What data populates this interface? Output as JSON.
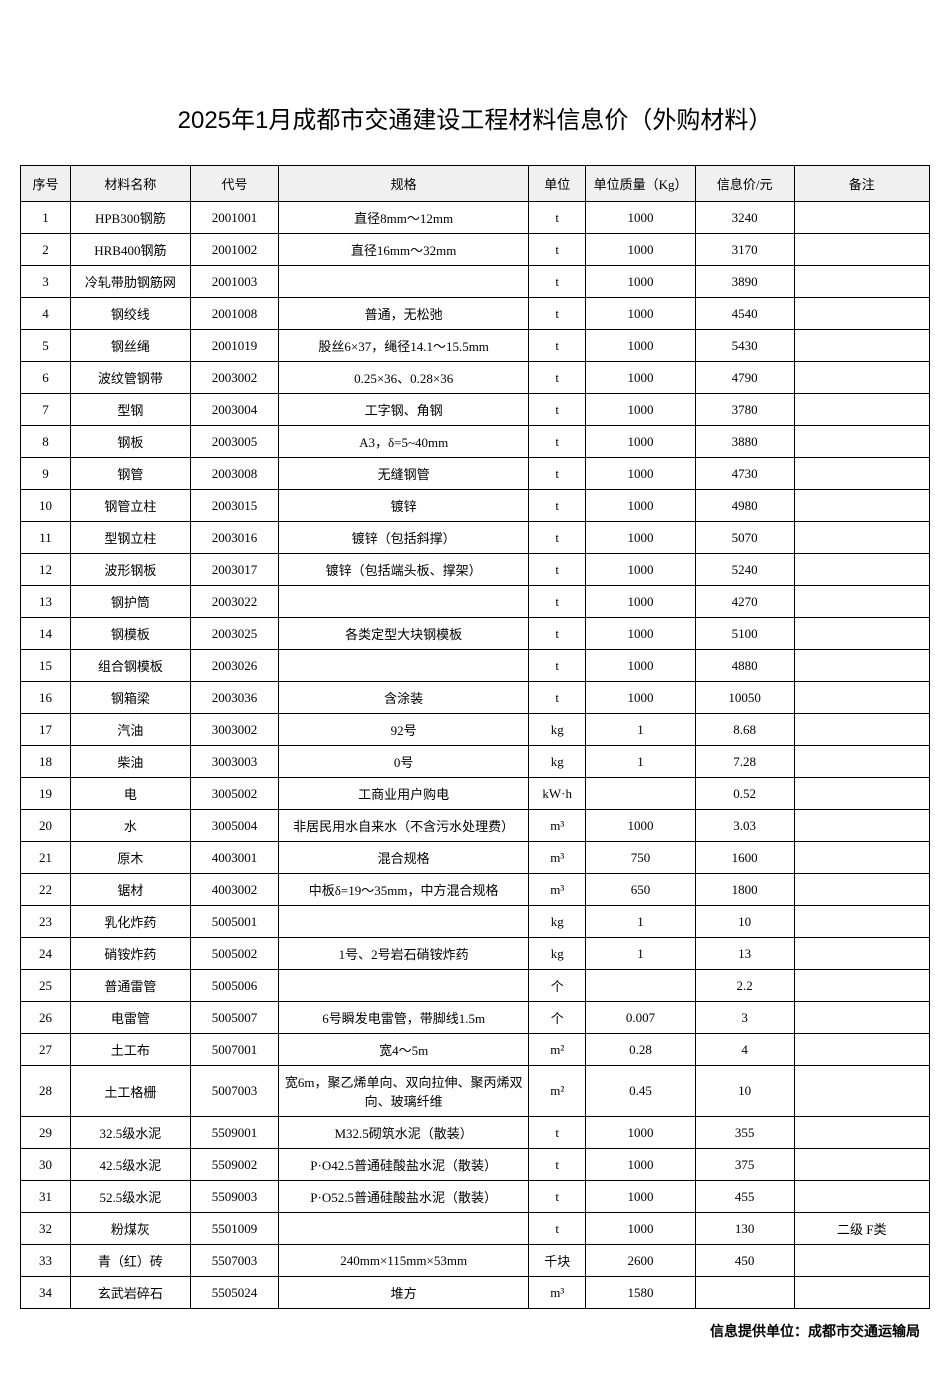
{
  "title": "2025年1月成都市交通建设工程材料信息价（外购材料）",
  "headers": {
    "seq": "序号",
    "name": "材料名称",
    "code": "代号",
    "spec": "规格",
    "unit": "单位",
    "mass": "单位质量（Kg）",
    "price": "信息价/元",
    "remark": "备注"
  },
  "rows": [
    {
      "seq": "1",
      "name": "HPB300钢筋",
      "code": "2001001",
      "spec": "直径8mm～12mm",
      "unit": "t",
      "mass": "1000",
      "price": "3240",
      "remark": ""
    },
    {
      "seq": "2",
      "name": "HRB400钢筋",
      "code": "2001002",
      "spec": "直径16mm～32mm",
      "unit": "t",
      "mass": "1000",
      "price": "3170",
      "remark": ""
    },
    {
      "seq": "3",
      "name": "冷轧带肋钢筋网",
      "code": "2001003",
      "spec": "",
      "unit": "t",
      "mass": "1000",
      "price": "3890",
      "remark": ""
    },
    {
      "seq": "4",
      "name": "钢绞线",
      "code": "2001008",
      "spec": "普通，无松弛",
      "unit": "t",
      "mass": "1000",
      "price": "4540",
      "remark": ""
    },
    {
      "seq": "5",
      "name": "钢丝绳",
      "code": "2001019",
      "spec": "股丝6×37，绳径14.1～15.5mm",
      "unit": "t",
      "mass": "1000",
      "price": "5430",
      "remark": ""
    },
    {
      "seq": "6",
      "name": "波纹管钢带",
      "code": "2003002",
      "spec": "0.25×36、0.28×36",
      "unit": "t",
      "mass": "1000",
      "price": "4790",
      "remark": ""
    },
    {
      "seq": "7",
      "name": "型钢",
      "code": "2003004",
      "spec": "工字钢、角钢",
      "unit": "t",
      "mass": "1000",
      "price": "3780",
      "remark": ""
    },
    {
      "seq": "8",
      "name": "钢板",
      "code": "2003005",
      "spec": "A3，δ=5~40mm",
      "unit": "t",
      "mass": "1000",
      "price": "3880",
      "remark": ""
    },
    {
      "seq": "9",
      "name": "钢管",
      "code": "2003008",
      "spec": "无缝钢管",
      "unit": "t",
      "mass": "1000",
      "price": "4730",
      "remark": ""
    },
    {
      "seq": "10",
      "name": "钢管立柱",
      "code": "2003015",
      "spec": "镀锌",
      "unit": "t",
      "mass": "1000",
      "price": "4980",
      "remark": ""
    },
    {
      "seq": "11",
      "name": "型钢立柱",
      "code": "2003016",
      "spec": "镀锌（包括斜撑）",
      "unit": "t",
      "mass": "1000",
      "price": "5070",
      "remark": ""
    },
    {
      "seq": "12",
      "name": "波形钢板",
      "code": "2003017",
      "spec": "镀锌（包括端头板、撑架）",
      "unit": "t",
      "mass": "1000",
      "price": "5240",
      "remark": ""
    },
    {
      "seq": "13",
      "name": "钢护筒",
      "code": "2003022",
      "spec": "",
      "unit": "t",
      "mass": "1000",
      "price": "4270",
      "remark": ""
    },
    {
      "seq": "14",
      "name": "钢模板",
      "code": "2003025",
      "spec": "各类定型大块钢模板",
      "unit": "t",
      "mass": "1000",
      "price": "5100",
      "remark": ""
    },
    {
      "seq": "15",
      "name": "组合钢模板",
      "code": "2003026",
      "spec": "",
      "unit": "t",
      "mass": "1000",
      "price": "4880",
      "remark": ""
    },
    {
      "seq": "16",
      "name": "钢箱梁",
      "code": "2003036",
      "spec": "含涂装",
      "unit": "t",
      "mass": "1000",
      "price": "10050",
      "remark": ""
    },
    {
      "seq": "17",
      "name": "汽油",
      "code": "3003002",
      "spec": "92号",
      "unit": "kg",
      "mass": "1",
      "price": "8.68",
      "remark": ""
    },
    {
      "seq": "18",
      "name": "柴油",
      "code": "3003003",
      "spec": "0号",
      "unit": "kg",
      "mass": "1",
      "price": "7.28",
      "remark": ""
    },
    {
      "seq": "19",
      "name": "电",
      "code": "3005002",
      "spec": "工商业用户购电",
      "unit": "kW·h",
      "mass": "",
      "price": "0.52",
      "remark": ""
    },
    {
      "seq": "20",
      "name": "水",
      "code": "3005004",
      "spec": "非居民用水自来水（不含污水处理费）",
      "unit": "m³",
      "mass": "1000",
      "price": "3.03",
      "remark": ""
    },
    {
      "seq": "21",
      "name": "原木",
      "code": "4003001",
      "spec": "混合规格",
      "unit": "m³",
      "mass": "750",
      "price": "1600",
      "remark": ""
    },
    {
      "seq": "22",
      "name": "锯材",
      "code": "4003002",
      "spec": "中板δ=19～35mm，中方混合规格",
      "unit": "m³",
      "mass": "650",
      "price": "1800",
      "remark": ""
    },
    {
      "seq": "23",
      "name": "乳化炸药",
      "code": "5005001",
      "spec": "",
      "unit": "kg",
      "mass": "1",
      "price": "10",
      "remark": ""
    },
    {
      "seq": "24",
      "name": "硝铵炸药",
      "code": "5005002",
      "spec": "1号、2号岩石硝铵炸药",
      "unit": "kg",
      "mass": "1",
      "price": "13",
      "remark": ""
    },
    {
      "seq": "25",
      "name": "普通雷管",
      "code": "5005006",
      "spec": "",
      "unit": "个",
      "mass": "",
      "price": "2.2",
      "remark": ""
    },
    {
      "seq": "26",
      "name": "电雷管",
      "code": "5005007",
      "spec": "6号瞬发电雷管，带脚线1.5m",
      "unit": "个",
      "mass": "0.007",
      "price": "3",
      "remark": ""
    },
    {
      "seq": "27",
      "name": "土工布",
      "code": "5007001",
      "spec": "宽4～5m",
      "unit": "m²",
      "mass": "0.28",
      "price": "4",
      "remark": ""
    },
    {
      "seq": "28",
      "name": "土工格栅",
      "code": "5007003",
      "spec": "宽6m，聚乙烯单向、双向拉伸、聚丙烯双向、玻璃纤维",
      "unit": "m²",
      "mass": "0.45",
      "price": "10",
      "remark": ""
    },
    {
      "seq": "29",
      "name": "32.5级水泥",
      "code": "5509001",
      "spec": "M32.5砌筑水泥（散装）",
      "unit": "t",
      "mass": "1000",
      "price": "355",
      "remark": ""
    },
    {
      "seq": "30",
      "name": "42.5级水泥",
      "code": "5509002",
      "spec": "P·O42.5普通硅酸盐水泥（散装）",
      "unit": "t",
      "mass": "1000",
      "price": "375",
      "remark": ""
    },
    {
      "seq": "31",
      "name": "52.5级水泥",
      "code": "5509003",
      "spec": "P·O52.5普通硅酸盐水泥（散装）",
      "unit": "t",
      "mass": "1000",
      "price": "455",
      "remark": ""
    },
    {
      "seq": "32",
      "name": "粉煤灰",
      "code": "5501009",
      "spec": "",
      "unit": "t",
      "mass": "1000",
      "price": "130",
      "remark": "二级 F类"
    },
    {
      "seq": "33",
      "name": "青（红）砖",
      "code": "5507003",
      "spec": "240mm×115mm×53mm",
      "unit": "千块",
      "mass": "2600",
      "price": "450",
      "remark": ""
    },
    {
      "seq": "34",
      "name": "玄武岩碎石",
      "code": "5505024",
      "spec": "堆方",
      "unit": "m³",
      "mass": "1580",
      "price": "",
      "remark": ""
    }
  ],
  "footer_source": "信息提供单位：成都市交通运输局"
}
